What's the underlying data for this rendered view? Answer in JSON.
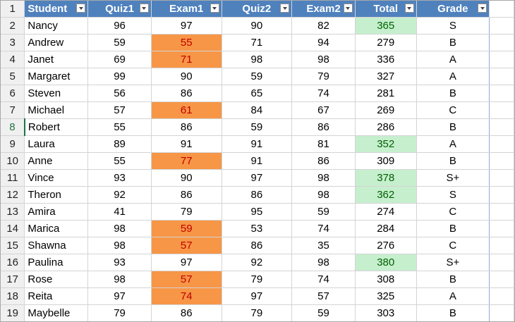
{
  "sheet": {
    "headers": [
      "Student",
      "Quiz1",
      "Exam1",
      "Quiz2",
      "Exam2",
      "Total",
      "Grade"
    ],
    "active_row": 8,
    "colors": {
      "header_bg": "#4F81BD",
      "low_fill": "#F79646",
      "low_text": "#C00000",
      "high_fill": "#C6EFCE",
      "high_text": "#006100",
      "active_row_number": "#217346"
    },
    "rows": [
      {
        "num": "2",
        "cells": [
          "Nancy",
          "96",
          "97",
          "90",
          "82",
          "365",
          "S"
        ],
        "exam1_low": false,
        "total_high": true
      },
      {
        "num": "3",
        "cells": [
          "Andrew",
          "59",
          "55",
          "71",
          "94",
          "279",
          "B"
        ],
        "exam1_low": true,
        "total_high": false
      },
      {
        "num": "4",
        "cells": [
          "Janet",
          "69",
          "71",
          "98",
          "98",
          "336",
          "A"
        ],
        "exam1_low": true,
        "total_high": false
      },
      {
        "num": "5",
        "cells": [
          "Margaret",
          "99",
          "90",
          "59",
          "79",
          "327",
          "A"
        ],
        "exam1_low": false,
        "total_high": false
      },
      {
        "num": "6",
        "cells": [
          "Steven",
          "56",
          "86",
          "65",
          "74",
          "281",
          "B"
        ],
        "exam1_low": false,
        "total_high": false
      },
      {
        "num": "7",
        "cells": [
          "Michael",
          "57",
          "61",
          "84",
          "67",
          "269",
          "C"
        ],
        "exam1_low": true,
        "total_high": false
      },
      {
        "num": "8",
        "cells": [
          "Robert",
          "55",
          "86",
          "59",
          "86",
          "286",
          "B"
        ],
        "exam1_low": false,
        "total_high": false
      },
      {
        "num": "9",
        "cells": [
          "Laura",
          "89",
          "91",
          "91",
          "81",
          "352",
          "A"
        ],
        "exam1_low": false,
        "total_high": true
      },
      {
        "num": "10",
        "cells": [
          "Anne",
          "55",
          "77",
          "91",
          "86",
          "309",
          "B"
        ],
        "exam1_low": true,
        "total_high": false
      },
      {
        "num": "11",
        "cells": [
          "Vince",
          "93",
          "90",
          "97",
          "98",
          "378",
          "S+"
        ],
        "exam1_low": false,
        "total_high": true
      },
      {
        "num": "12",
        "cells": [
          "Theron",
          "92",
          "86",
          "86",
          "98",
          "362",
          "S"
        ],
        "exam1_low": false,
        "total_high": true
      },
      {
        "num": "13",
        "cells": [
          "Amira",
          "41",
          "79",
          "95",
          "59",
          "274",
          "C"
        ],
        "exam1_low": false,
        "total_high": false
      },
      {
        "num": "14",
        "cells": [
          "Marica",
          "98",
          "59",
          "53",
          "74",
          "284",
          "B"
        ],
        "exam1_low": true,
        "total_high": false
      },
      {
        "num": "15",
        "cells": [
          "Shawna",
          "98",
          "57",
          "86",
          "35",
          "276",
          "C"
        ],
        "exam1_low": true,
        "total_high": false
      },
      {
        "num": "16",
        "cells": [
          "Paulina",
          "93",
          "97",
          "92",
          "98",
          "380",
          "S+"
        ],
        "exam1_low": false,
        "total_high": true
      },
      {
        "num": "17",
        "cells": [
          "Rose",
          "98",
          "57",
          "79",
          "74",
          "308",
          "B"
        ],
        "exam1_low": true,
        "total_high": false
      },
      {
        "num": "18",
        "cells": [
          "Reita",
          "97",
          "74",
          "97",
          "57",
          "325",
          "A"
        ],
        "exam1_low": true,
        "total_high": false
      },
      {
        "num": "19",
        "cells": [
          "Maybelle",
          "79",
          "86",
          "79",
          "59",
          "303",
          "B"
        ],
        "exam1_low": false,
        "total_high": false
      }
    ]
  }
}
